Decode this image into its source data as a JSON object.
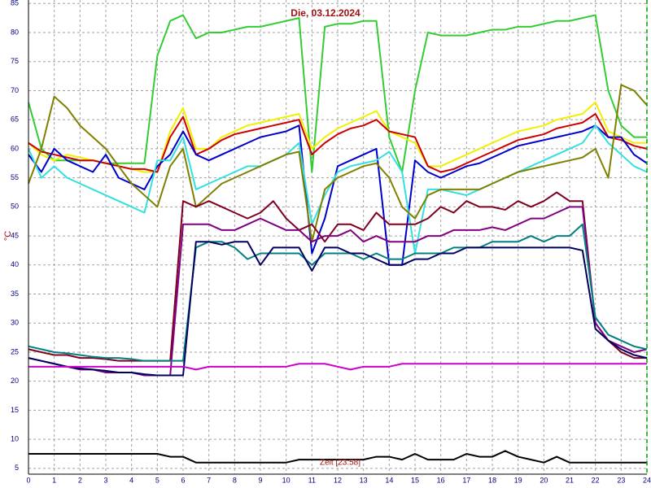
{
  "chart_data": {
    "type": "line",
    "title": "Die, 03.12.2024",
    "y_label": "°C",
    "annotation": "Zeit [23:58]",
    "x": [
      0,
      0.5,
      1,
      1.5,
      2,
      2.5,
      3,
      3.5,
      4,
      4.5,
      5,
      5.5,
      6,
      6.5,
      7,
      7.5,
      8,
      8.5,
      9,
      9.5,
      10,
      10.5,
      11,
      11.5,
      12,
      12.5,
      13,
      13.5,
      14,
      14.5,
      15,
      15.5,
      16,
      16.5,
      17,
      17.5,
      18,
      18.5,
      19,
      19.5,
      20,
      20.5,
      21,
      21.5,
      22,
      22.5,
      23,
      23.5,
      24
    ],
    "xlim": [
      0,
      24
    ],
    "ylim": [
      4,
      85.6
    ],
    "xticks": [
      0,
      1,
      2,
      3,
      4,
      5,
      6,
      7,
      8,
      9,
      10,
      11,
      12,
      13,
      14,
      15,
      16,
      17,
      18,
      19,
      20,
      21,
      22,
      23,
      24
    ],
    "yticks": [
      5,
      10,
      15,
      20,
      25,
      30,
      35,
      40,
      45,
      50,
      55,
      60,
      65,
      70,
      75,
      80,
      85
    ],
    "grid": true,
    "series": [
      {
        "color": "#33cc33",
        "values": [
          68,
          60,
          58,
          58,
          58,
          58,
          57.5,
          57.5,
          57.5,
          57.5,
          76,
          82,
          83,
          79,
          80,
          80,
          80.5,
          81,
          81,
          81.5,
          82,
          82.5,
          56,
          81,
          81.5,
          81.5,
          82,
          82,
          62,
          56,
          70,
          80,
          79.5,
          79.5,
          79.5,
          80,
          80.5,
          80.5,
          81,
          81,
          81.5,
          82,
          82,
          82.5,
          83,
          70,
          64,
          62,
          62
        ]
      },
      {
        "color": "#f0f000",
        "values": [
          61,
          59,
          58,
          59,
          58.5,
          58,
          57.5,
          57,
          56.5,
          56,
          56,
          63,
          67,
          60,
          60,
          62,
          63,
          64,
          64.5,
          65,
          65.5,
          66,
          60,
          62,
          63.5,
          64.5,
          65.5,
          66.5,
          63,
          62,
          61,
          57,
          57,
          58,
          59,
          60,
          61,
          62,
          63,
          63.5,
          64,
          65,
          65.5,
          66,
          68,
          63,
          62,
          61,
          61
        ]
      },
      {
        "color": "#cc0000",
        "values": [
          61,
          59.5,
          59,
          58.5,
          58,
          58,
          57.5,
          57,
          56.5,
          56.5,
          56,
          62,
          65.5,
          59,
          60,
          61.5,
          62.5,
          63,
          63.5,
          64,
          64.5,
          65,
          59,
          61,
          62.5,
          63.5,
          64,
          65,
          63,
          62.5,
          62,
          57,
          56,
          56.5,
          57.5,
          58.5,
          59.5,
          60.5,
          61.5,
          62,
          62.5,
          63.5,
          64,
          64.5,
          66,
          62,
          61.5,
          60.5,
          60
        ]
      },
      {
        "color": "#0000cc",
        "values": [
          59,
          56,
          60,
          58,
          57,
          56,
          59,
          55,
          54,
          53,
          57,
          59,
          63,
          59,
          58,
          59,
          60,
          61,
          62,
          62.5,
          63,
          64,
          42,
          48,
          57,
          58,
          59,
          60,
          40,
          40,
          58,
          56,
          55,
          56,
          57,
          57.5,
          58.5,
          59.5,
          60.5,
          61,
          61.5,
          62,
          62.5,
          63,
          64,
          62,
          62,
          59,
          57.5
        ]
      },
      {
        "color": "#33e0e0",
        "values": [
          60,
          55,
          57,
          55,
          54,
          53,
          52,
          51,
          50,
          49,
          58,
          58,
          62,
          53,
          54,
          55,
          56,
          57,
          57,
          58,
          59,
          61,
          47,
          52,
          56,
          57,
          57.5,
          58,
          59.5,
          56,
          42,
          53,
          53,
          52.5,
          52,
          53,
          54,
          55,
          56,
          57,
          58,
          59,
          60,
          61,
          64,
          61,
          59,
          57,
          56
        ]
      },
      {
        "color": "#808000",
        "values": [
          54,
          60,
          69,
          67,
          64,
          62,
          60,
          57,
          54,
          52,
          50,
          57,
          60,
          50,
          52,
          54,
          55,
          56,
          57,
          58,
          59,
          59.5,
          44,
          53,
          55,
          56,
          57,
          57.5,
          55,
          50,
          48,
          52,
          53,
          53,
          53,
          53,
          54,
          55,
          56,
          56.5,
          57,
          57.5,
          58,
          58.5,
          60,
          55,
          71,
          70,
          67.5
        ]
      },
      {
        "color": "#800020",
        "values": [
          25.5,
          25,
          24.5,
          24.5,
          24,
          24,
          23.8,
          23.5,
          23.5,
          23.5,
          23.5,
          23.5,
          51,
          50,
          51,
          50,
          49,
          48,
          49,
          51,
          48,
          46,
          47,
          44,
          47,
          47,
          46,
          49,
          47,
          47,
          47,
          48,
          50,
          49,
          51,
          50,
          50,
          49.5,
          51,
          50,
          51,
          52.5,
          51,
          51,
          30,
          27,
          25,
          24,
          24
        ]
      },
      {
        "color": "#800080",
        "values": [
          24,
          23.5,
          23,
          22.5,
          22,
          22,
          21.5,
          21.5,
          21.5,
          21,
          21,
          21,
          47,
          47,
          47,
          46,
          46,
          47,
          48,
          47,
          46,
          46,
          44,
          45,
          45,
          46,
          44,
          45,
          44,
          44,
          44,
          45,
          45,
          46,
          46,
          46,
          46.5,
          46,
          47,
          48,
          48,
          49,
          50,
          50,
          30,
          27,
          26,
          25,
          25.5
        ]
      },
      {
        "color": "#008080",
        "values": [
          26,
          25.5,
          25,
          24.8,
          24.5,
          24.2,
          24,
          24,
          23.8,
          23.5,
          23.5,
          23.5,
          23.5,
          43,
          44,
          44,
          43,
          41,
          42,
          42,
          42,
          42,
          40,
          42,
          42,
          42,
          41,
          42,
          41,
          41,
          42,
          42,
          42,
          43,
          43,
          43,
          44,
          44,
          44,
          45,
          44,
          45,
          45,
          47,
          31,
          28,
          27,
          26,
          25.5
        ]
      },
      {
        "color": "#000060",
        "values": [
          24,
          23.5,
          23,
          22.5,
          22.2,
          22,
          21.8,
          21.5,
          21.5,
          21.2,
          21,
          21,
          21,
          44,
          44,
          43.5,
          44,
          44,
          40,
          43,
          43,
          43,
          39,
          43,
          43,
          42,
          42,
          41,
          40,
          40,
          41,
          41,
          42,
          42,
          43,
          43,
          43,
          43,
          43,
          43,
          43,
          43,
          43,
          42.5,
          29,
          27,
          25.5,
          24.5,
          24
        ]
      },
      {
        "color": "#cc00cc",
        "values": [
          22.5,
          22.5,
          22.5,
          22.5,
          22.5,
          22.5,
          22.5,
          22.5,
          22.5,
          22.5,
          22.5,
          22.5,
          22.5,
          22,
          22.5,
          22.5,
          22.5,
          22.5,
          22.5,
          22.5,
          22.5,
          23,
          23,
          23,
          22.5,
          22,
          22.5,
          22.5,
          22.5,
          23,
          23,
          23,
          23,
          23,
          23,
          23,
          23,
          23,
          23,
          23,
          23,
          23,
          23,
          23,
          23,
          23,
          23,
          23,
          23
        ]
      },
      {
        "color": "#000000",
        "values": [
          7.5,
          7.5,
          7.5,
          7.5,
          7.5,
          7.5,
          7.5,
          7.5,
          7.5,
          7.5,
          7.5,
          7,
          7,
          6,
          6,
          6,
          6,
          6,
          6,
          6,
          6,
          6.5,
          6.5,
          6.5,
          6.5,
          6.5,
          6.5,
          7,
          7,
          6.5,
          7.5,
          6.5,
          6.5,
          6.5,
          7.5,
          7,
          7,
          8,
          7,
          6.5,
          6,
          7,
          6,
          6,
          6,
          6,
          6,
          6,
          6
        ]
      }
    ]
  }
}
